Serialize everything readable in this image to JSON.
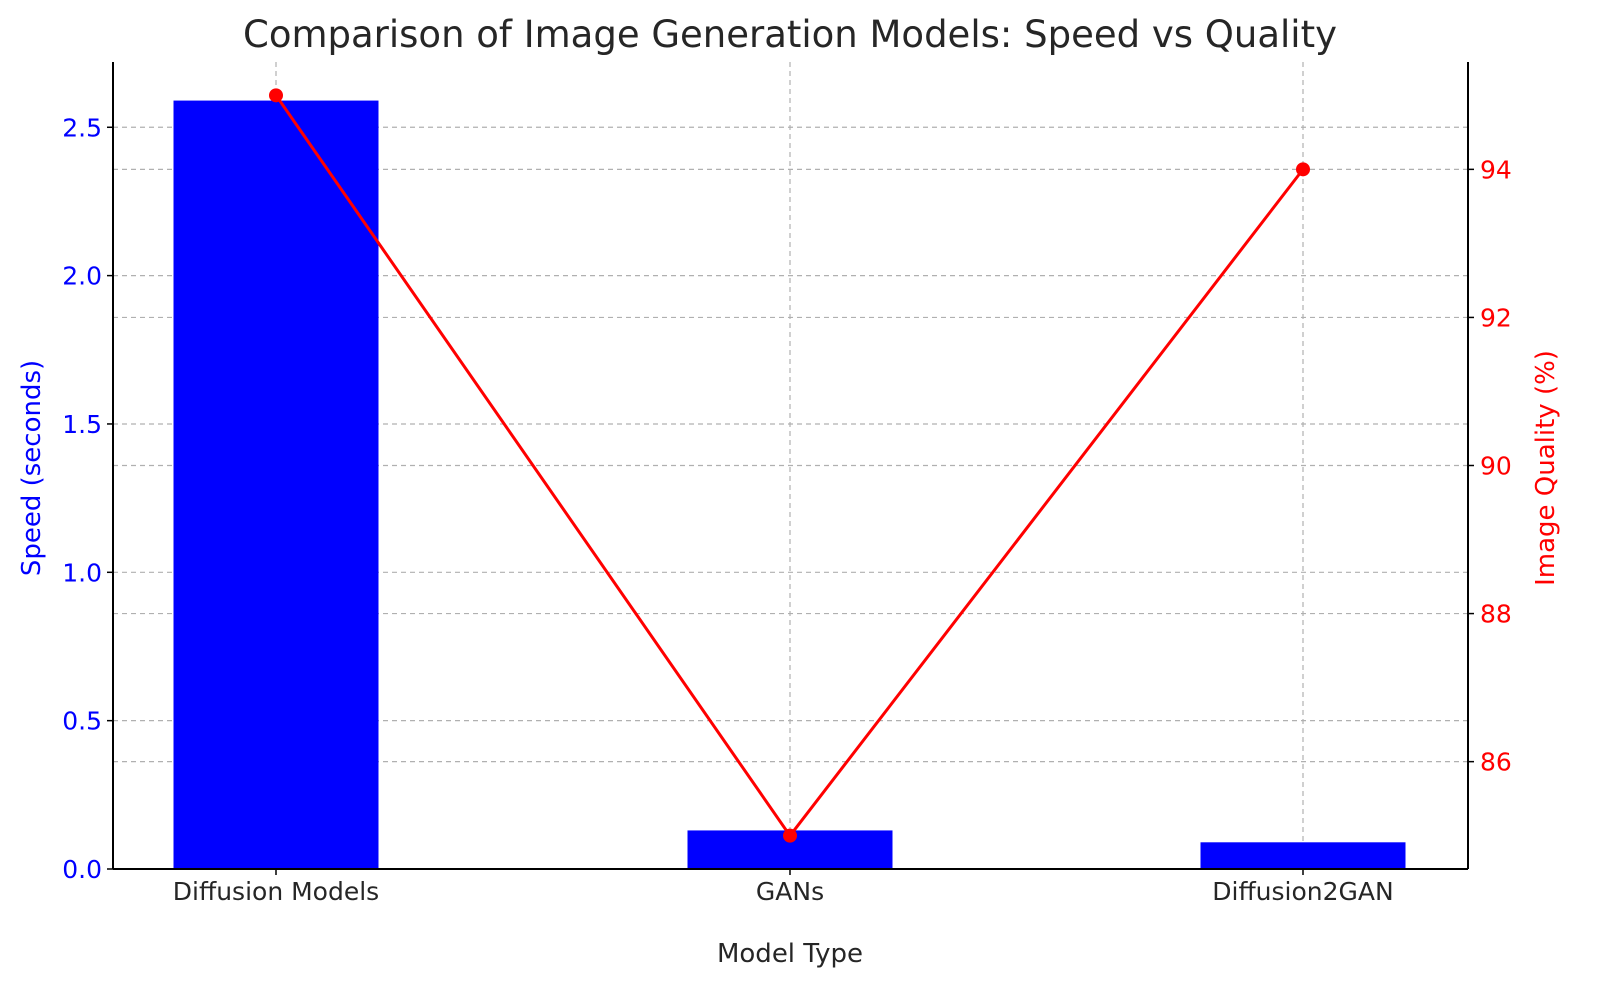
{
  "chart_data": {
    "type": "bar",
    "title": "Comparison of Image Generation Models: Speed vs Quality",
    "xlabel": "Model Type",
    "ylabel": "Speed (seconds)",
    "ylabel_right": "Image Quality (%)",
    "categories": [
      "Diffusion Models",
      "GANs",
      "Diffusion2GAN"
    ],
    "series": [
      {
        "name": "Speed (seconds)",
        "type": "bar",
        "axis": "left",
        "color": "#0000ff",
        "values": [
          2.59,
          0.13,
          0.09
        ]
      },
      {
        "name": "Image Quality (%)",
        "type": "line",
        "axis": "right",
        "color": "#ff0000",
        "values": [
          95,
          85,
          94
        ]
      }
    ],
    "ylim": [
      0,
      2.72
    ],
    "ylim_right": [
      84.55,
      95.45
    ],
    "yticks": [
      "0.0",
      "0.5",
      "1.0",
      "1.5",
      "2.0",
      "2.5"
    ],
    "yticks_right": [
      "86",
      "88",
      "90",
      "92",
      "94"
    ],
    "grid": true,
    "left_axis_color": "#0000ff",
    "right_axis_color": "#ff0000"
  }
}
